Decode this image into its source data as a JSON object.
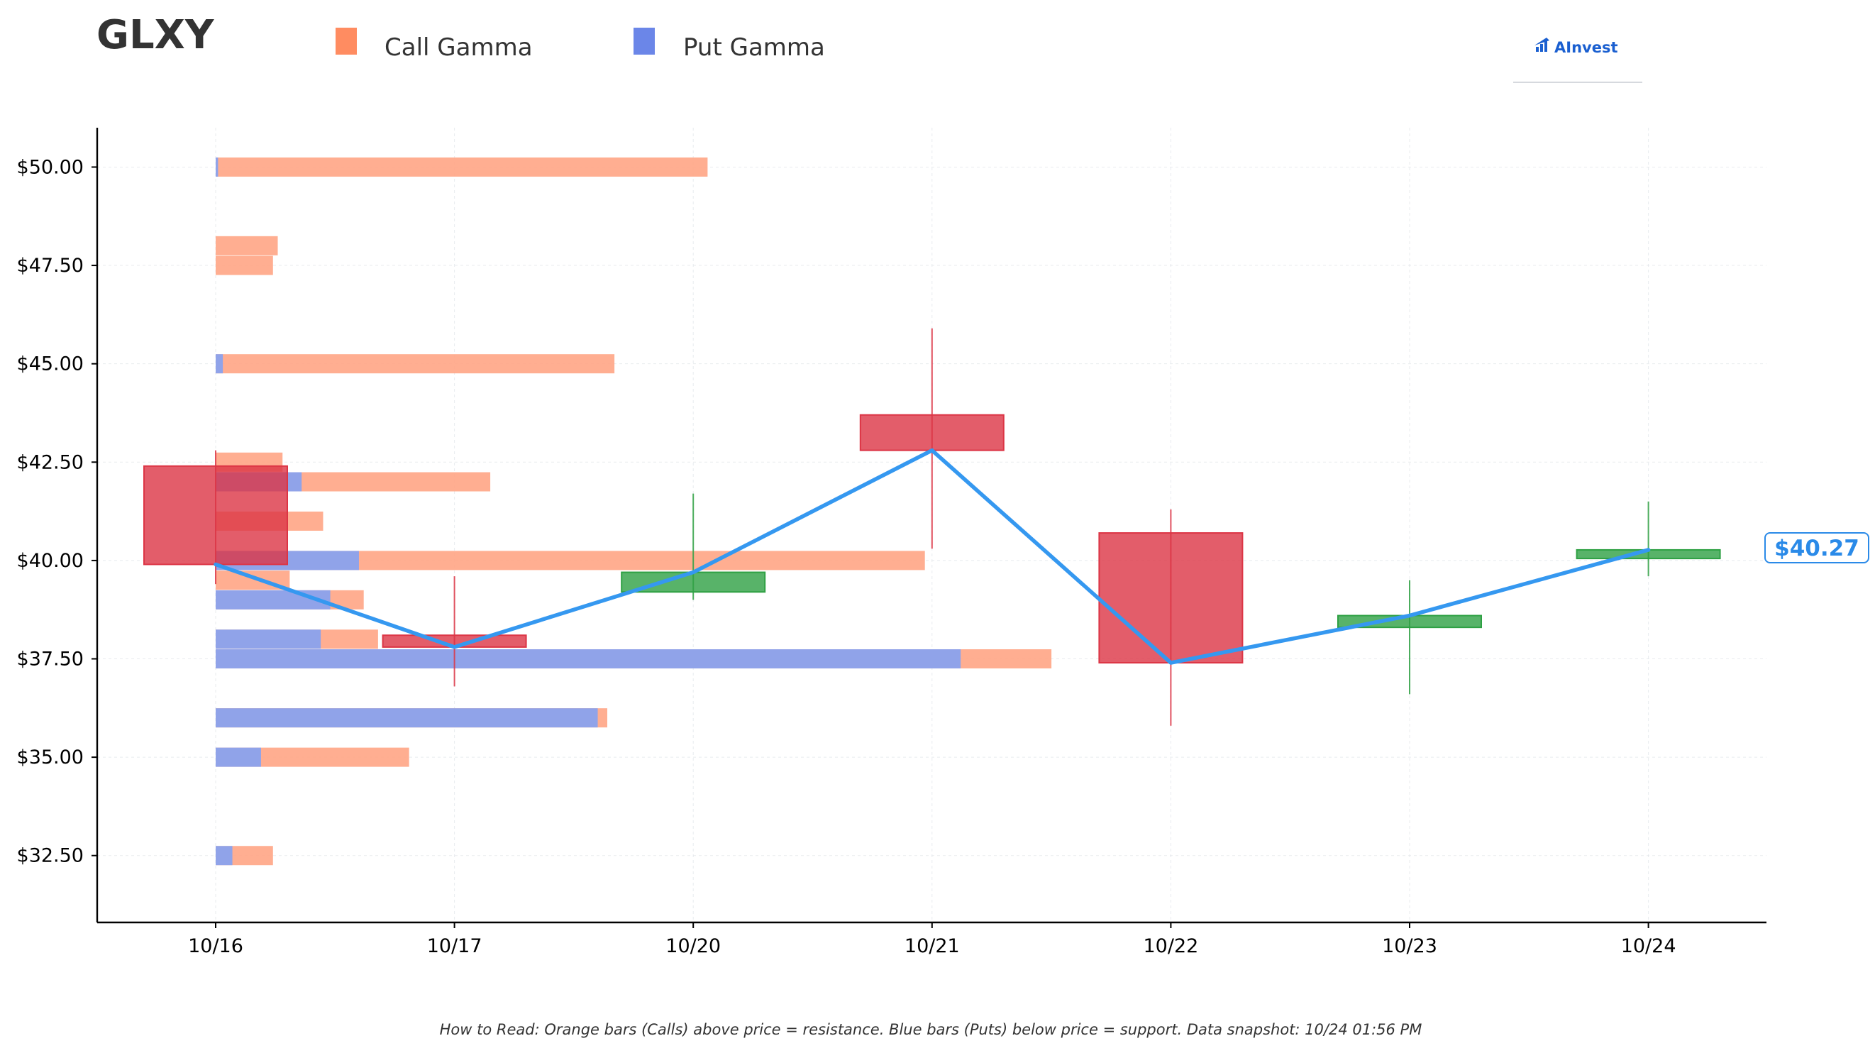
{
  "header": {
    "ticker": "GLXY",
    "brand": "AInvest"
  },
  "legend": [
    {
      "label": "Call Gamma",
      "color": "#ff8c61"
    },
    {
      "label": "Put Gamma",
      "color": "#6b86e8"
    }
  ],
  "footnote": "How to Read: Orange bars (Calls) above price = resistance. Blue bars (Puts) below price = support. Data snapshot: 10/24 01:56 PM",
  "chart_data": {
    "type": "candlestick",
    "categories": [
      "10/16",
      "10/17",
      "10/20",
      "10/21",
      "10/22",
      "10/23",
      "10/24"
    ],
    "ylim": [
      30.8,
      51.0
    ],
    "yticks": [
      32.5,
      35.0,
      37.5,
      40.0,
      42.5,
      45.0,
      47.5,
      50.0
    ],
    "ytick_labels": [
      "$32.50",
      "$35.00",
      "$37.50",
      "$40.00",
      "$42.50",
      "$45.00",
      "$47.50",
      "$50.00"
    ],
    "grid": true,
    "colors": {
      "up": "#2ea043",
      "down": "#dc3545",
      "line": "#3598f0",
      "call": "#ffa585",
      "put": "#8aa2ee"
    },
    "candles": [
      {
        "date": "10/16",
        "open": 42.4,
        "high": 42.8,
        "low": 39.4,
        "close": 39.9
      },
      {
        "date": "10/17",
        "open": 38.1,
        "high": 39.6,
        "low": 36.8,
        "close": 37.8
      },
      {
        "date": "10/20",
        "open": 39.2,
        "high": 41.7,
        "low": 39.0,
        "close": 39.7
      },
      {
        "date": "10/21",
        "open": 43.7,
        "high": 45.9,
        "low": 40.3,
        "close": 42.8
      },
      {
        "date": "10/22",
        "open": 40.7,
        "high": 41.3,
        "low": 35.8,
        "close": 37.4
      },
      {
        "date": "10/23",
        "open": 38.3,
        "high": 39.5,
        "low": 36.6,
        "close": 38.6
      },
      {
        "date": "10/24",
        "open": 40.05,
        "high": 41.5,
        "low": 39.6,
        "close": 40.27
      }
    ],
    "close_line": [
      39.9,
      37.8,
      39.7,
      42.8,
      37.4,
      38.6,
      40.27
    ],
    "last_price_label": "$40.27",
    "gamma_bars_units": "x in category-index units from 10/16",
    "call_bars": [
      {
        "strike": 50.0,
        "value": 2.06
      },
      {
        "strike": 48.0,
        "value": 0.26
      },
      {
        "strike": 47.5,
        "value": 0.24
      },
      {
        "strike": 45.0,
        "value": 1.67
      },
      {
        "strike": 42.5,
        "value": 0.28
      },
      {
        "strike": 42.0,
        "value": 1.15
      },
      {
        "strike": 41.0,
        "value": 0.45
      },
      {
        "strike": 40.0,
        "value": 2.97
      },
      {
        "strike": 39.5,
        "value": 0.31
      },
      {
        "strike": 39.0,
        "value": 0.62
      },
      {
        "strike": 38.0,
        "value": 0.68
      },
      {
        "strike": 37.5,
        "value": 3.5
      },
      {
        "strike": 36.0,
        "value": 1.64
      },
      {
        "strike": 35.0,
        "value": 0.81
      },
      {
        "strike": 32.5,
        "value": 0.24
      }
    ],
    "put_bars": [
      {
        "strike": 50.0,
        "value": 0.01
      },
      {
        "strike": 45.0,
        "value": 0.03
      },
      {
        "strike": 42.0,
        "value": 0.36
      },
      {
        "strike": 40.0,
        "value": 0.6
      },
      {
        "strike": 39.0,
        "value": 0.48
      },
      {
        "strike": 38.0,
        "value": 0.44
      },
      {
        "strike": 37.5,
        "value": 3.12
      },
      {
        "strike": 36.0,
        "value": 1.6
      },
      {
        "strike": 35.0,
        "value": 0.19
      },
      {
        "strike": 32.5,
        "value": 0.07
      }
    ]
  }
}
